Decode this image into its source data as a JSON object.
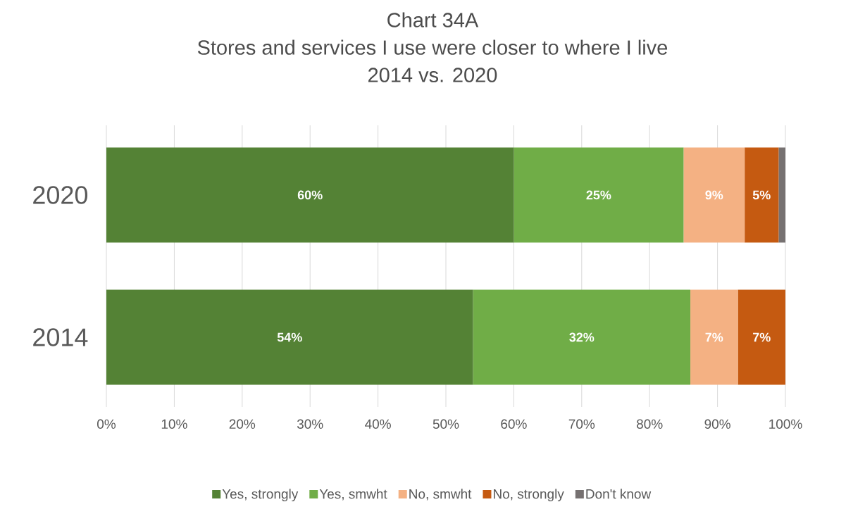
{
  "chart_data": {
    "type": "bar",
    "orientation": "horizontal",
    "stacked": true,
    "title": "Chart 34A\nStores and services I use were closer to where I live\n2014 vs. 2020",
    "categories": [
      "2020",
      "2014"
    ],
    "series": [
      {
        "name": "Yes, strongly",
        "color": "#548235",
        "values": [
          60,
          54
        ],
        "value_labels": [
          "60%",
          "54%"
        ]
      },
      {
        "name": "Yes, smwht",
        "color": "#70ad47",
        "values": [
          25,
          32
        ],
        "value_labels": [
          "25%",
          "32%"
        ]
      },
      {
        "name": "No, smwht",
        "color": "#f4b183",
        "values": [
          9,
          7
        ],
        "value_labels": [
          "9%",
          "7%"
        ]
      },
      {
        "name": "No, strongly",
        "color": "#c55a11",
        "values": [
          5,
          7
        ],
        "value_labels": [
          "5%",
          "7%"
        ]
      },
      {
        "name": "Don't know",
        "color": "#767171",
        "values": [
          1,
          0
        ],
        "value_labels": [
          null,
          null
        ]
      }
    ],
    "xlim": [
      0,
      100
    ],
    "xticks": [
      {
        "value": 0,
        "label": "0%"
      },
      {
        "value": 10,
        "label": "10%"
      },
      {
        "value": 20,
        "label": "20%"
      },
      {
        "value": 30,
        "label": "30%"
      },
      {
        "value": 40,
        "label": "40%"
      },
      {
        "value": 50,
        "label": "50%"
      },
      {
        "value": 60,
        "label": "60%"
      },
      {
        "value": 70,
        "label": "70%"
      },
      {
        "value": 80,
        "label": "80%"
      },
      {
        "value": 90,
        "label": "90%"
      },
      {
        "value": 100,
        "label": "100%"
      }
    ],
    "grid": "x",
    "legend": "bottom"
  }
}
